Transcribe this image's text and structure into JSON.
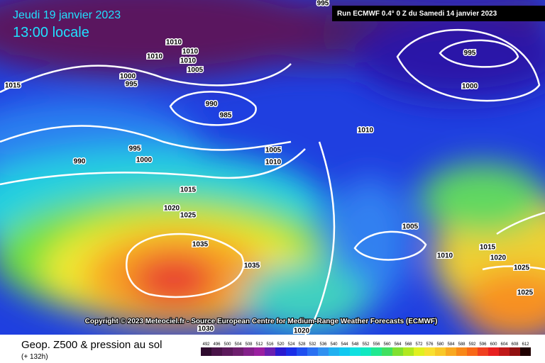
{
  "header": {
    "date": "Jeudi 19 janvier 2023",
    "time": "13:00 locale",
    "run": "Run ECMWF 0.4° 0 Z du Samedi 14 janvier 2023"
  },
  "isobar_labels": [
    "995",
    "1015",
    "1010",
    "1010",
    "1010",
    "1010",
    "1005",
    "1000",
    "995",
    "990",
    "985",
    "995",
    "1000",
    "990",
    "1005",
    "1010",
    "1015",
    "1020",
    "1025",
    "1035",
    "1035",
    "1030",
    "1020",
    "1010",
    "995",
    "1000",
    "1005",
    "1010",
    "1015",
    "1020",
    "1025",
    "1025"
  ],
  "copyright": "Copyright © 2023 Meteociel.fr - Source European Centre for Medium-Range Weather Forecasts (ECMWF)",
  "footer": {
    "title": "Geop. Z500 & pression au sol",
    "subtitle": "(+ 132h)"
  },
  "colorbar": {
    "labels": [
      492,
      496,
      500,
      504,
      508,
      512,
      516,
      520,
      524,
      528,
      532,
      536,
      540,
      544,
      548,
      552,
      556,
      560,
      564,
      568,
      572,
      576,
      580,
      584,
      588,
      592,
      596,
      600,
      604,
      608,
      612
    ],
    "colors": [
      "#2e0b2e",
      "#4a1449",
      "#5c1a5c",
      "#6e1f6e",
      "#84208a",
      "#9a1fa0",
      "#6a1fb0",
      "#2a1ad0",
      "#1a2ee8",
      "#1f4ff0",
      "#2a70f2",
      "#3090f0",
      "#20b0f0",
      "#10c8f0",
      "#10e0e0",
      "#10e8c0",
      "#20e890",
      "#40e060",
      "#80e030",
      "#b0e820",
      "#e0f020",
      "#f8e030",
      "#f8c828",
      "#f8a820",
      "#f88818",
      "#f86818",
      "#f04020",
      "#e82020",
      "#c01818",
      "#901010",
      "#200000"
    ]
  }
}
